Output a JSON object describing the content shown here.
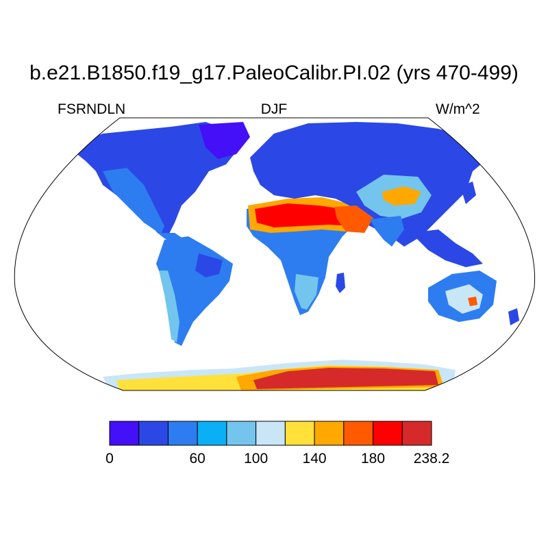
{
  "title": "b.e21.B1850.f19_g17.PaleoCalibr.PI.02 (yrs 470-499)",
  "left_string": "FSRNDLN",
  "center_string": "DJF",
  "right_string": "W/m^2",
  "colorbar": {
    "colors": [
      "#4410f7",
      "#2b48e6",
      "#2d7df0",
      "#0aaff5",
      "#73c5ed",
      "#c9e6f7",
      "#ffe13a",
      "#ffa800",
      "#ff5a00",
      "#ff0000",
      "#d62a2a"
    ],
    "tick_labels": [
      "0",
      "60",
      "100",
      "140",
      "180",
      "238.2"
    ],
    "tick_values": [
      0,
      60,
      100,
      140,
      180,
      238.2
    ],
    "levels": [
      0,
      20,
      40,
      60,
      80,
      100,
      120,
      140,
      160,
      180,
      200,
      238.2
    ]
  },
  "map": {
    "projection": "Robinson",
    "field": "FSRNDLN",
    "season": "DJF",
    "units": "W/m^2",
    "ocean_masked": true,
    "regions": [
      {
        "name": "north-america",
        "color": "#2b48e6"
      },
      {
        "name": "south-america",
        "color": "#2d7df0"
      },
      {
        "name": "africa",
        "color": "#2d7df0"
      },
      {
        "name": "sahara",
        "color": "#ff0000"
      },
      {
        "name": "eurasia",
        "color": "#2b48e6"
      },
      {
        "name": "tibet",
        "color": "#ffa800"
      },
      {
        "name": "australia",
        "color": "#2d7df0"
      },
      {
        "name": "antarctica",
        "color": "#d62a2a"
      }
    ]
  }
}
